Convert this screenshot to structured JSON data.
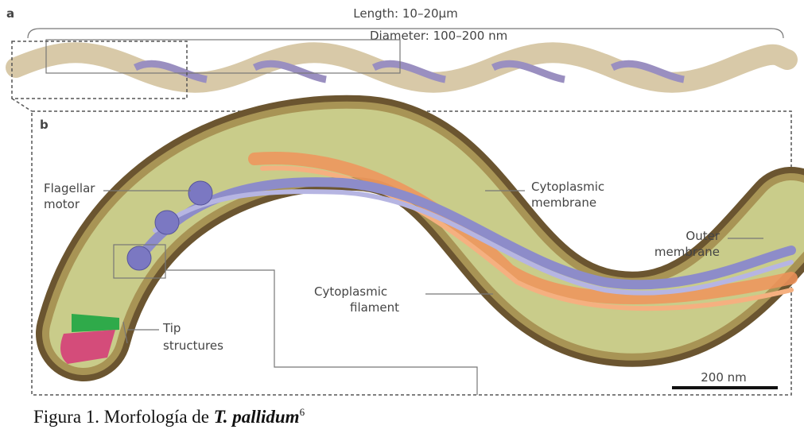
{
  "panel_a": {
    "letter": "a",
    "length_label": "Length: 10–20μm",
    "diameter_label": "Diameter: 100–200 nm"
  },
  "panel_b": {
    "letter": "b",
    "labels": {
      "flagellar_motor": [
        "Flagellar",
        "motor"
      ],
      "cytoplasmic_membrane": [
        "Cytoplasmic",
        "membrane"
      ],
      "outer_membrane": [
        "Outer",
        "membrane"
      ],
      "cytoplasmic_filament": [
        "Cytoplasmic",
        "filament"
      ],
      "tip_structures": [
        "Tip",
        "structures"
      ]
    },
    "scale_bar": "200 nm"
  },
  "caption": {
    "prefix": "Figura 1. Morfología de ",
    "species": "T. pallidum",
    "reference": "6"
  }
}
